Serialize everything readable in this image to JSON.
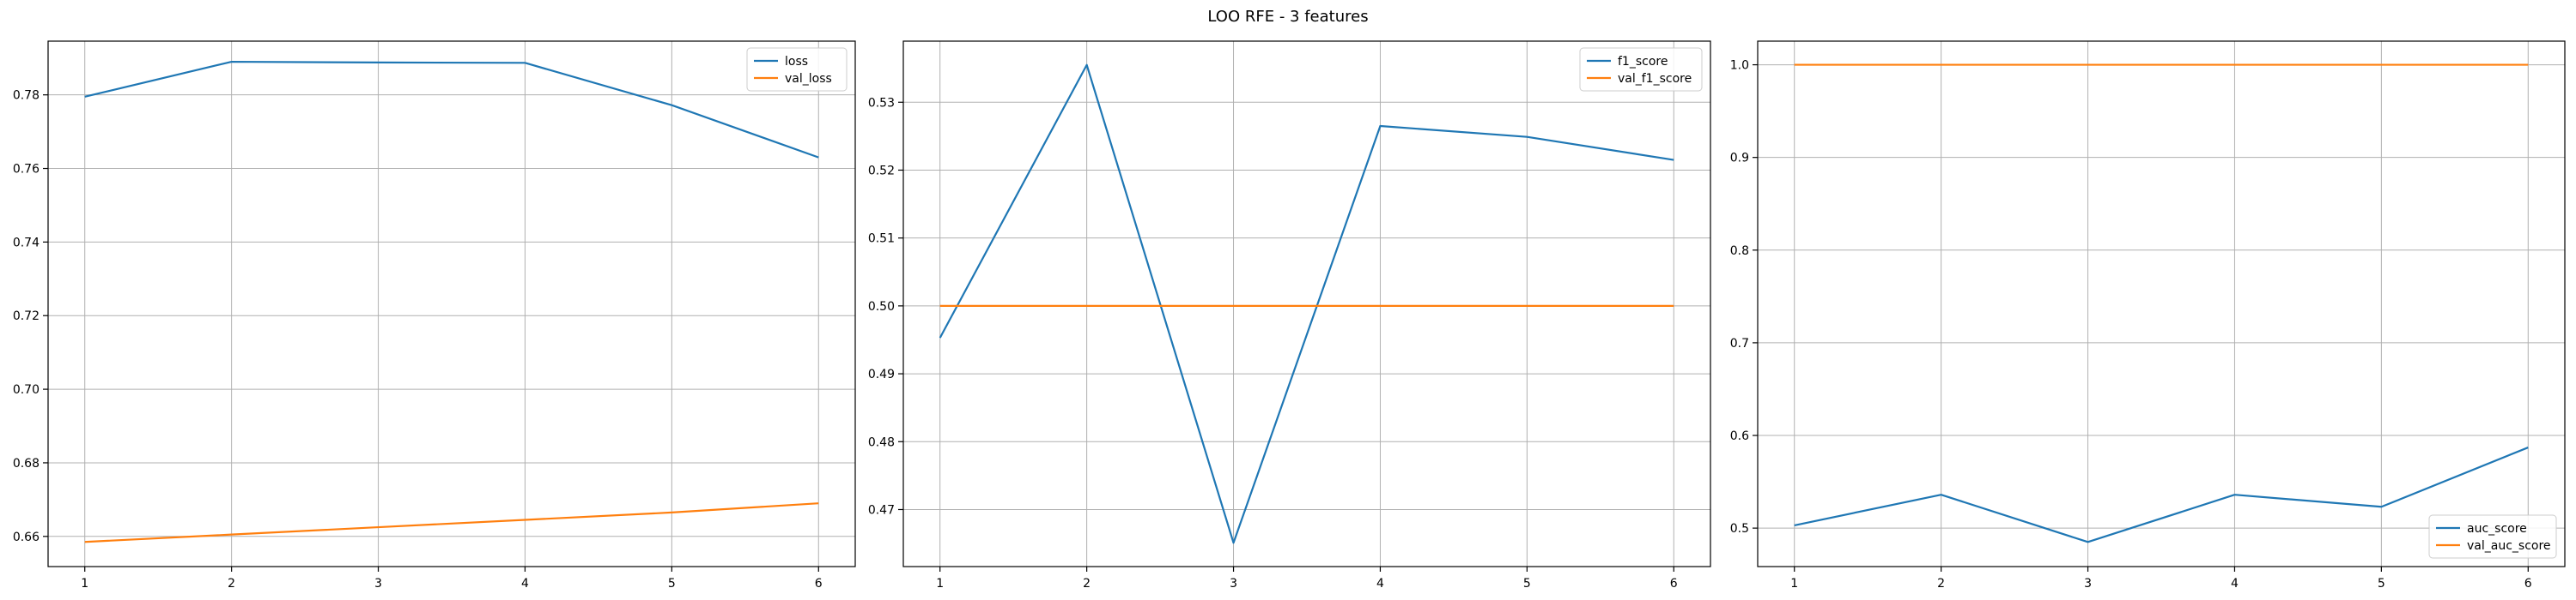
{
  "title": "LOO RFE - 3 features",
  "colors": {
    "series1": "#1f77b4",
    "series2": "#ff7f0e",
    "grid": "#b0b0b0",
    "axis": "#000000"
  },
  "chart_data": [
    {
      "type": "line",
      "x": [
        1,
        2,
        3,
        4,
        5,
        6
      ],
      "xticks": [
        "1",
        "2",
        "3",
        "4",
        "5",
        "6"
      ],
      "xlim": [
        0.75,
        6.25
      ],
      "ylim": [
        0.6518,
        0.7946
      ],
      "yticks": [
        "0.66",
        "0.68",
        "0.70",
        "0.72",
        "0.74",
        "0.76",
        "0.78"
      ],
      "ytick_values": [
        0.66,
        0.68,
        0.7,
        0.72,
        0.74,
        0.76,
        0.78
      ],
      "grid": true,
      "legend_position": "upper right",
      "series": [
        {
          "name": "loss",
          "values": [
            0.7795,
            0.789,
            0.7888,
            0.7887,
            0.7772,
            0.763
          ]
        },
        {
          "name": "val_loss",
          "values": [
            0.6585,
            0.6605,
            0.6625,
            0.6645,
            0.6665,
            0.669
          ]
        }
      ]
    },
    {
      "type": "line",
      "x": [
        1,
        2,
        3,
        4,
        5,
        6
      ],
      "xticks": [
        "1",
        "2",
        "3",
        "4",
        "5",
        "6"
      ],
      "xlim": [
        0.75,
        6.25
      ],
      "ylim": [
        0.4616,
        0.539
      ],
      "yticks": [
        "0.47",
        "0.48",
        "0.49",
        "0.50",
        "0.51",
        "0.52",
        "0.53"
      ],
      "ytick_values": [
        0.47,
        0.48,
        0.49,
        0.5,
        0.51,
        0.52,
        0.53
      ],
      "grid": true,
      "legend_position": "upper right",
      "series": [
        {
          "name": "f1_score",
          "values": [
            0.4953,
            0.5355,
            0.4651,
            0.5265,
            0.5249,
            0.5215
          ]
        },
        {
          "name": "val_f1_score",
          "values": [
            0.5,
            0.5,
            0.5,
            0.5,
            0.5,
            0.5
          ]
        }
      ]
    },
    {
      "type": "line",
      "x": [
        1,
        2,
        3,
        4,
        5,
        6
      ],
      "xticks": [
        "1",
        "2",
        "3",
        "4",
        "5",
        "6"
      ],
      "xlim": [
        0.75,
        6.25
      ],
      "ylim": [
        0.4585,
        1.0255
      ],
      "yticks": [
        "0.5",
        "0.6",
        "0.7",
        "0.8",
        "0.9",
        "1.0"
      ],
      "ytick_values": [
        0.5,
        0.6,
        0.7,
        0.8,
        0.9,
        1.0
      ],
      "grid": true,
      "legend_position": "lower right",
      "series": [
        {
          "name": "auc_score",
          "values": [
            0.503,
            0.536,
            0.485,
            0.536,
            0.523,
            0.587
          ]
        },
        {
          "name": "val_auc_score",
          "values": [
            1.0,
            1.0,
            1.0,
            1.0,
            1.0,
            1.0
          ]
        }
      ]
    }
  ]
}
